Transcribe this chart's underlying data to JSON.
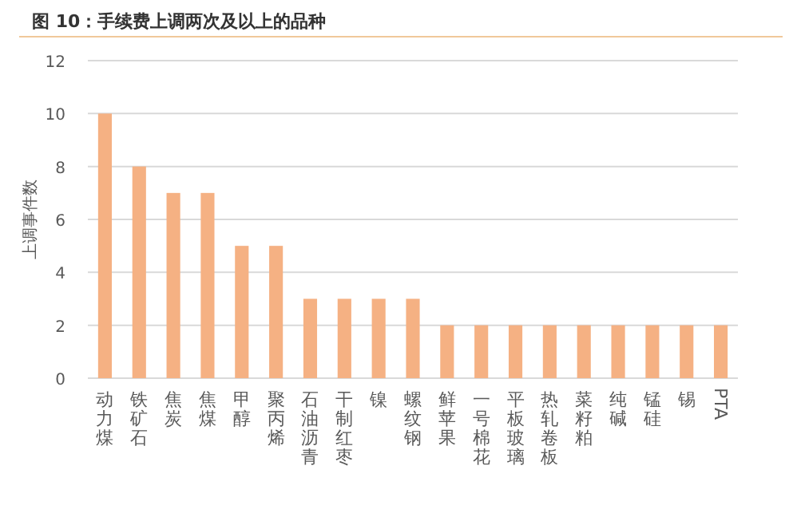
{
  "chart_data": {
    "type": "bar",
    "title": "图 10：手续费上调两次及以上的品种",
    "ylabel": "上调事件数",
    "categories": [
      "动力煤",
      "铁矿石",
      "焦炭",
      "焦煤",
      "甲醇",
      "聚丙烯",
      "石油沥青",
      "干制红枣",
      "镍",
      "螺纹钢",
      "鲜苹果",
      "一号棉花",
      "平板玻璃",
      "热轧卷板",
      "菜籽粕",
      "纯碱",
      "锰硅",
      "锡",
      "PTA"
    ],
    "values": [
      10,
      8,
      7,
      7,
      5,
      5,
      3,
      3,
      3,
      3,
      2,
      2,
      2,
      2,
      2,
      2,
      2,
      2,
      2
    ],
    "color": "#f5b183",
    "ylim": [
      0,
      12
    ],
    "yticks": [
      0,
      2,
      4,
      6,
      8,
      10,
      12
    ],
    "grid": "y"
  }
}
